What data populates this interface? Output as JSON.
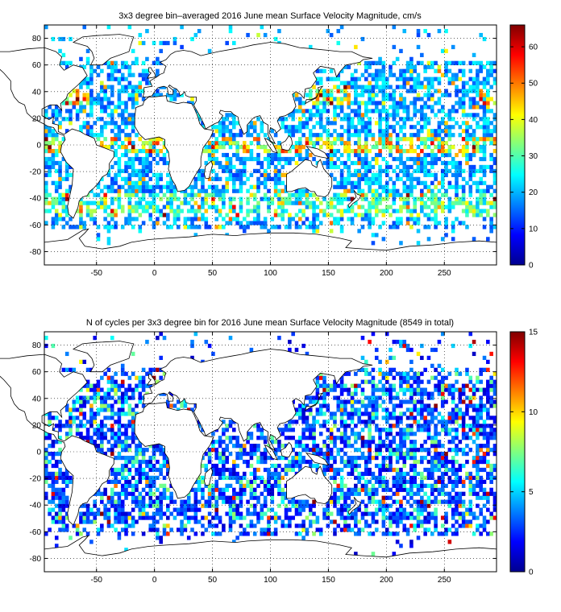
{
  "chart_data": [
    {
      "type": "heatmap",
      "title": "3x3 degree bin–averaged 2016 June mean Surface Velocity Magnitude, cm/s",
      "xlabel": "",
      "ylabel": "",
      "xlim": [
        -95,
        295
      ],
      "ylim": [
        -90,
        90
      ],
      "x_ticks": [
        -50,
        0,
        50,
        100,
        150,
        200,
        250
      ],
      "y_ticks": [
        80,
        60,
        40,
        20,
        0,
        -20,
        -40,
        -60,
        -80
      ],
      "colorbar": {
        "min": 0,
        "max": 66,
        "ticks": [
          0,
          10,
          20,
          30,
          40,
          50,
          60
        ]
      },
      "bin_size_deg": 3,
      "grid": true,
      "colormap": "jet",
      "seed": 11
    },
    {
      "type": "heatmap",
      "title": "N of cycles per 3x3 degree bin for 2016 June mean Surface Velocity Magnitude (8549 in total)",
      "xlabel": "",
      "ylabel": "",
      "xlim": [
        -95,
        295
      ],
      "ylim": [
        -90,
        90
      ],
      "x_ticks": [
        -50,
        0,
        50,
        100,
        150,
        200,
        250
      ],
      "y_ticks": [
        80,
        60,
        40,
        20,
        0,
        -20,
        -40,
        -60,
        -80
      ],
      "colorbar": {
        "min": 0,
        "max": 15,
        "ticks": [
          0,
          5,
          10,
          15
        ]
      },
      "bin_size_deg": 3,
      "grid": true,
      "colormap": "jet",
      "seed": 29
    }
  ]
}
